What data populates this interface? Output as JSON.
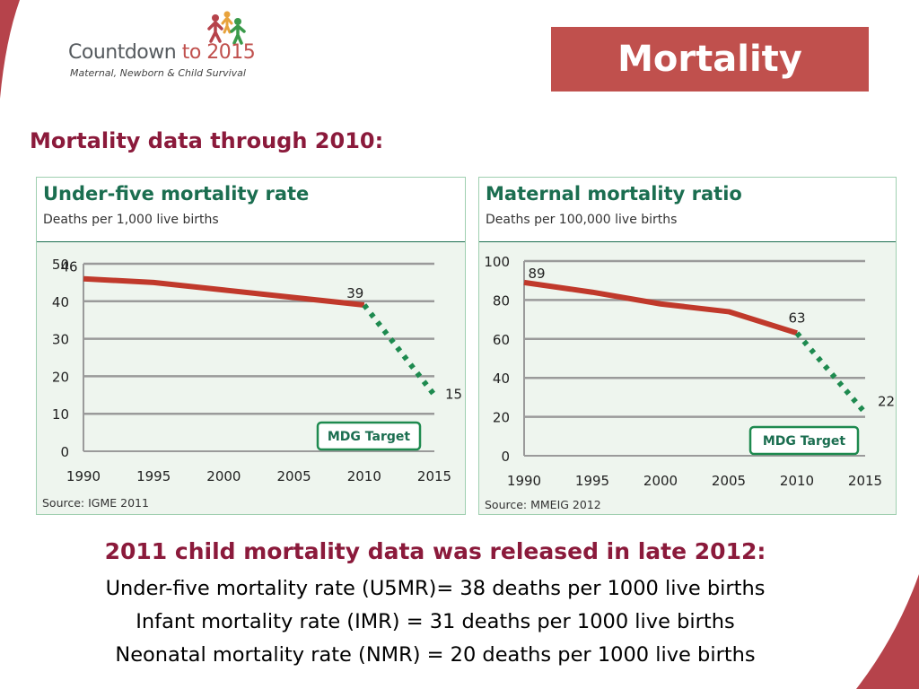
{
  "logo": {
    "name_part1": "Countdown ",
    "name_part2": "to 2015",
    "tagline": "Maternal, Newborn & Child Survival"
  },
  "header": {
    "title": "Mortality"
  },
  "section_heading": "Mortality data through 2010:",
  "colors": {
    "brand_red": "#c0504d",
    "heading_maroon": "#8b1a3b",
    "panel_green": "#1b6e50",
    "trend_line": "#c0392b",
    "target_line": "#1e8a4f",
    "panel_background": "#eef5ee"
  },
  "chart_data": [
    {
      "type": "line",
      "title": "Under-five mortality rate",
      "subtitle": "Deaths per 1,000 live births",
      "source": "Source: IGME 2011",
      "x_ticks": [
        "1990",
        "1995",
        "2000",
        "2005",
        "2010",
        "2015"
      ],
      "y_ticks": [
        "0",
        "10",
        "20",
        "30",
        "40",
        "50"
      ],
      "xlim": [
        1990,
        2015
      ],
      "ylim": [
        0,
        50
      ],
      "grid": true,
      "series": [
        {
          "style": "solid",
          "x": [
            1990,
            1995,
            2000,
            2005,
            2010
          ],
          "y": [
            46,
            45,
            43,
            41,
            39
          ]
        },
        {
          "style": "dotted",
          "x": [
            2010,
            2015
          ],
          "y": [
            39,
            15
          ]
        }
      ],
      "data_labels": [
        {
          "x": 1990,
          "y": 46,
          "text": "46"
        },
        {
          "x": 2010,
          "y": 39,
          "text": "39"
        },
        {
          "x": 2015,
          "y": 15,
          "text": "15"
        }
      ],
      "legend": {
        "label": "MDG Target",
        "placement": "bottom-right"
      }
    },
    {
      "type": "line",
      "title": "Maternal mortality ratio",
      "subtitle": "Deaths per 100,000 live births",
      "source": "Source: MMEIG 2012",
      "x_ticks": [
        "1990",
        "1995",
        "2000",
        "2005",
        "2010",
        "2015"
      ],
      "y_ticks": [
        "0",
        "20",
        "40",
        "60",
        "80",
        "100"
      ],
      "xlim": [
        1990,
        2015
      ],
      "ylim": [
        0,
        100
      ],
      "grid": true,
      "series": [
        {
          "style": "solid",
          "x": [
            1990,
            1995,
            2000,
            2005,
            2010
          ],
          "y": [
            89,
            84,
            78,
            74,
            63
          ]
        },
        {
          "style": "dotted",
          "x": [
            2010,
            2015
          ],
          "y": [
            63,
            22
          ]
        }
      ],
      "data_labels": [
        {
          "x": 1990,
          "y": 89,
          "text": "89"
        },
        {
          "x": 2010,
          "y": 63,
          "text": "63"
        },
        {
          "x": 2015,
          "y": 22,
          "text": "22"
        }
      ],
      "legend": {
        "label": "MDG Target",
        "placement": "bottom-right"
      }
    }
  ],
  "captions": {
    "heading": "2011 child mortality data was released in late 2012:",
    "lines": [
      "Under-five mortality rate (U5MR)= 38 deaths per 1000 live births",
      "Infant mortality rate (IMR) = 31 deaths per 1000 live births",
      "Neonatal mortality rate (NMR) = 20 deaths per 1000 live births"
    ]
  }
}
